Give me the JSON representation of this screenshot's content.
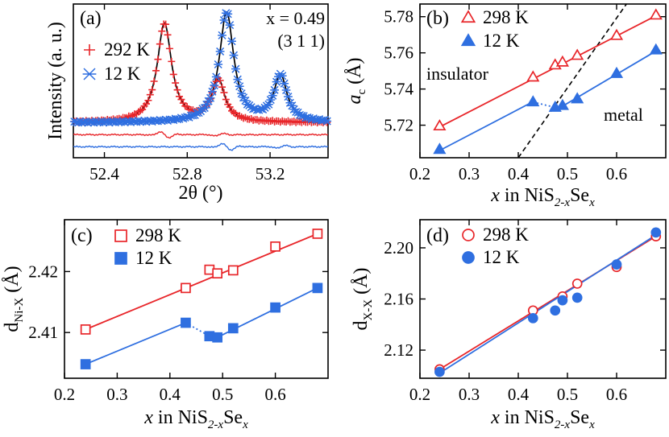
{
  "colors": {
    "red": "#e8262a",
    "blue": "#2f6fe0",
    "black": "#000000"
  },
  "chart_data": [
    {
      "id": "a",
      "type": "line",
      "panel_label": "(a)",
      "annotation_line1": "x = 0.49",
      "annotation_line2": "(3 1 1)",
      "xlabel": "2θ (°)",
      "ylabel": "Intensity (a. u.)",
      "xlim": [
        52.25,
        53.48
      ],
      "ylim": [
        -0.32,
        1.08
      ],
      "xticks": [
        52.4,
        52.8,
        53.2
      ],
      "xticklabels": [
        "52.4",
        "52.8",
        "53.2"
      ],
      "legend": [
        {
          "label": "292 K",
          "marker": "plus",
          "color": "#e8262a"
        },
        {
          "label": "12 K",
          "marker": "cross",
          "color": "#2f6fe0"
        }
      ],
      "series": [
        {
          "name": "292 K",
          "peaks": [
            [
              52.69,
              0.9,
              0.042
            ],
            [
              52.95,
              0.38,
              0.038
            ]
          ],
          "baseline": 0.0,
          "diff_offset": -0.11
        },
        {
          "name": "12 K",
          "peaks": [
            [
              52.99,
              1.0,
              0.042
            ],
            [
              53.25,
              0.42,
              0.038
            ]
          ],
          "baseline": 0.0,
          "diff_offset": -0.22
        }
      ]
    },
    {
      "id": "b",
      "type": "scatter",
      "panel_label": "(b)",
      "xlabel_prefix": "x",
      "xlabel_mid": " in NiS",
      "xlabel_sub1": "2-x",
      "xlabel_mid2": "Se",
      "xlabel_sub2": "x",
      "ylabel_main": "a",
      "ylabel_sub": "c",
      "ylabel_unit": " (Å)",
      "xlim": [
        0.2,
        0.7
      ],
      "ylim": [
        5.702,
        5.787
      ],
      "xticks": [
        0.2,
        0.3,
        0.4,
        0.5,
        0.6
      ],
      "xticklabels": [
        "0.2",
        "0.3",
        "0.4",
        "0.5",
        "0.6"
      ],
      "yticks": [
        5.72,
        5.74,
        5.76,
        5.78
      ],
      "yticklabels": [
        "5.72",
        "5.74",
        "5.76",
        "5.78"
      ],
      "region_insulator": "insulator",
      "region_metal": "metal",
      "boundary_line": {
        "x": [
          0.4,
          0.62
        ],
        "y": [
          5.702,
          5.787
        ]
      },
      "legend": [
        {
          "label": "298 K",
          "marker": "triangle-open",
          "color": "#e8262a"
        },
        {
          "label": "12 K",
          "marker": "triangle-filled",
          "color": "#2f6fe0"
        }
      ],
      "series": [
        {
          "name": "298 K",
          "x": [
            0.24,
            0.43,
            0.475,
            0.49,
            0.52,
            0.6,
            0.68
          ],
          "y": [
            5.7195,
            5.7465,
            5.7532,
            5.7548,
            5.7585,
            5.7695,
            5.7808
          ],
          "fit": [
            [
              0.24,
              5.719
            ],
            [
              0.68,
              5.7805
            ]
          ]
        },
        {
          "name": "12 K",
          "x": [
            0.24,
            0.43,
            0.475,
            0.49,
            0.52,
            0.6,
            0.68
          ],
          "y": [
            5.7065,
            5.7328,
            5.7298,
            5.7308,
            5.7345,
            5.7485,
            5.7615
          ],
          "fit_low": [
            [
              0.24,
              5.706
            ],
            [
              0.43,
              5.733
            ]
          ],
          "fit_high": [
            [
              0.49,
              5.7305
            ],
            [
              0.68,
              5.761
            ]
          ],
          "dotted": [
            [
              0.43,
              5.7328
            ],
            [
              0.475,
              5.7298
            ]
          ]
        }
      ]
    },
    {
      "id": "c",
      "type": "scatter",
      "panel_label": "(c)",
      "xlabel_prefix": "x",
      "xlabel_mid": " in NiS",
      "xlabel_sub1": "2-x",
      "xlabel_mid2": "Se",
      "xlabel_sub2": "x",
      "ylabel_main": "d",
      "ylabel_sub": "Ni-X",
      "ylabel_unit": " (Å)",
      "xlim": [
        0.2,
        0.7
      ],
      "ylim": [
        2.4025,
        2.4285
      ],
      "xticks": [
        0.2,
        0.3,
        0.4,
        0.5,
        0.6
      ],
      "xticklabels": [
        "0.2",
        "0.3",
        "0.4",
        "0.5",
        "0.6"
      ],
      "yticks": [
        2.41,
        2.42
      ],
      "yticklabels": [
        "2.41",
        "2.42"
      ],
      "legend": [
        {
          "label": "298 K",
          "marker": "square-open",
          "color": "#e8262a"
        },
        {
          "label": "12 K",
          "marker": "square-filled",
          "color": "#2f6fe0"
        }
      ],
      "series": [
        {
          "name": "298 K",
          "x": [
            0.24,
            0.43,
            0.475,
            0.49,
            0.52,
            0.6,
            0.68
          ],
          "y": [
            2.4105,
            2.4173,
            2.4203,
            2.4197,
            2.4202,
            2.4241,
            2.4262
          ],
          "fit": [
            [
              0.24,
              2.4105
            ],
            [
              0.68,
              2.4262
            ]
          ]
        },
        {
          "name": "12 K",
          "x": [
            0.24,
            0.43,
            0.475,
            0.49,
            0.52,
            0.6,
            0.68
          ],
          "y": [
            2.4048,
            2.4116,
            2.4094,
            2.4092,
            2.4107,
            2.4141,
            2.4173
          ],
          "fit_low": [
            [
              0.24,
              2.4048
            ],
            [
              0.43,
              2.4116
            ]
          ],
          "fit_high": [
            [
              0.49,
              2.4092
            ],
            [
              0.68,
              2.4173
            ]
          ],
          "dotted": [
            [
              0.43,
              2.4116
            ],
            [
              0.475,
              2.4094
            ]
          ]
        }
      ]
    },
    {
      "id": "d",
      "type": "scatter",
      "panel_label": "(d)",
      "xlabel_prefix": "x",
      "xlabel_mid": " in NiS",
      "xlabel_sub1": "2-x",
      "xlabel_mid2": "Se",
      "xlabel_sub2": "x",
      "ylabel_main": "d",
      "ylabel_sub": "X-X",
      "ylabel_unit": " (Å)",
      "xlim": [
        0.2,
        0.7
      ],
      "ylim": [
        2.098,
        2.222
      ],
      "xticks": [
        0.2,
        0.3,
        0.4,
        0.5,
        0.6
      ],
      "xticklabels": [
        "0.2",
        "0.3",
        "0.4",
        "0.5",
        "0.6"
      ],
      "yticks": [
        2.12,
        2.16,
        2.2
      ],
      "yticklabels": [
        "2.12",
        "2.16",
        "2.20"
      ],
      "legend": [
        {
          "label": "298 K",
          "marker": "circle-open",
          "color": "#e8262a"
        },
        {
          "label": "12 K",
          "marker": "circle-filled",
          "color": "#2f6fe0"
        }
      ],
      "series": [
        {
          "name": "298 K",
          "x": [
            0.24,
            0.43,
            0.49,
            0.52,
            0.6,
            0.68
          ],
          "y": [
            2.105,
            2.151,
            2.162,
            2.172,
            2.185,
            2.209
          ],
          "fit": [
            [
              0.24,
              2.105
            ],
            [
              0.68,
              2.209
            ]
          ]
        },
        {
          "name": "12 K",
          "x": [
            0.24,
            0.43,
            0.475,
            0.49,
            0.52,
            0.6,
            0.68
          ],
          "y": [
            2.103,
            2.145,
            2.151,
            2.159,
            2.161,
            2.187,
            2.212
          ],
          "fit": [
            [
              0.24,
              2.102
            ],
            [
              0.68,
              2.21
            ]
          ]
        }
      ]
    }
  ]
}
